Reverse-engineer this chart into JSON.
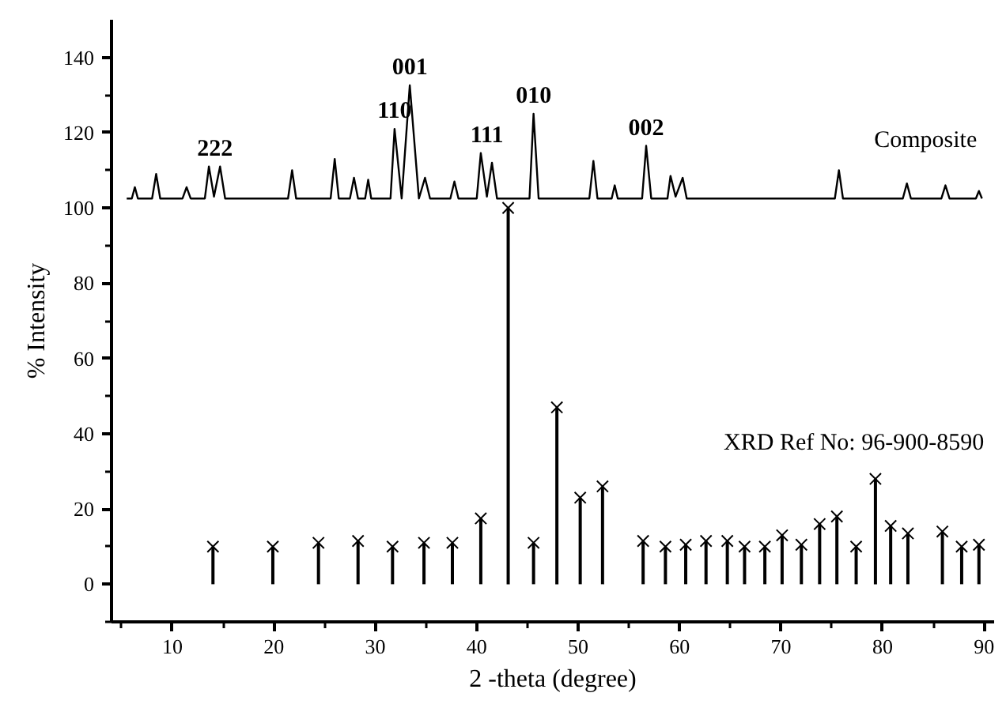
{
  "chart_data": {
    "type": "line",
    "xlabel": "2 -theta (degree)",
    "ylabel": "% Intensity",
    "xlim": [
      4,
      91
    ],
    "ylim": [
      -10,
      150
    ],
    "xticks": [
      {
        "value": 5,
        "label": null
      },
      10,
      {
        "value": 15,
        "label": null
      },
      20,
      {
        "value": 25,
        "label": null
      },
      30,
      {
        "value": 35,
        "label": null
      },
      40,
      {
        "value": 45,
        "label": null
      },
      50,
      {
        "value": 55,
        "label": null
      },
      60,
      {
        "value": 65,
        "label": null
      },
      70,
      {
        "value": 75,
        "label": null
      },
      80,
      {
        "value": 85,
        "label": null
      },
      90
    ],
    "yticks": [
      {
        "value": -10,
        "label": null
      },
      0,
      {
        "value": 10,
        "label": null
      },
      20,
      {
        "value": 30,
        "label": null
      },
      40,
      {
        "value": 50,
        "label": null
      },
      60,
      {
        "value": 70,
        "label": null
      },
      80,
      {
        "value": 90,
        "label": null
      },
      100,
      {
        "value": 110,
        "label": null
      },
      120,
      {
        "value": 130,
        "label": null
      },
      140
    ],
    "grid": false,
    "legend": false,
    "series": [
      {
        "name": "Composite",
        "color": "#000000",
        "marker": "none",
        "line_style": "solid",
        "x": [
          5.5,
          6.0,
          6.3,
          6.6,
          8.0,
          8.4,
          8.8,
          11.0,
          11.4,
          11.8,
          13.2,
          13.6,
          14.1,
          14.7,
          15.2,
          21.4,
          21.8,
          22.2,
          25.6,
          26.0,
          26.4,
          27.5,
          27.9,
          28.3,
          29.0,
          29.3,
          29.6,
          31.5,
          31.9,
          32.6,
          33.4,
          34.3,
          34.9,
          35.4,
          37.4,
          37.8,
          38.2,
          40.0,
          40.4,
          41.0,
          41.5,
          42.0,
          45.2,
          45.6,
          46.1,
          51.1,
          51.5,
          51.9,
          53.3,
          53.6,
          53.9,
          56.3,
          56.7,
          57.2,
          58.8,
          59.1,
          59.6,
          60.3,
          60.7,
          75.3,
          75.7,
          76.1,
          82.0,
          82.4,
          82.8,
          85.8,
          86.2,
          86.6,
          89.2,
          89.5,
          89.8
        ],
        "values": [
          102.5,
          102.5,
          105.5,
          102.5,
          102.5,
          109,
          102.5,
          102.5,
          105.5,
          102.5,
          102.5,
          111,
          103,
          111,
          102.5,
          102.5,
          110,
          102.5,
          102.5,
          113,
          102.5,
          102.5,
          108,
          102.5,
          102.5,
          107.5,
          102.5,
          102.5,
          121,
          102.5,
          132.6,
          102.5,
          108,
          102.5,
          102.5,
          107,
          102.5,
          102.5,
          114.6,
          103,
          112,
          102.5,
          102.5,
          125,
          102.5,
          102.5,
          112.5,
          102.5,
          102.5,
          106,
          102.5,
          102.5,
          116.5,
          102.5,
          102.5,
          108.5,
          103,
          108,
          102.5,
          102.5,
          110,
          102.5,
          102.5,
          106.5,
          102.5,
          102.5,
          106,
          102.5,
          102.5,
          104.5,
          102.5
        ]
      },
      {
        "name": "XRD Ref No: 96-900-8590",
        "type": "lollipop",
        "color": "#000000",
        "marker": "cross",
        "x": [
          14.0,
          19.9,
          24.4,
          28.3,
          31.7,
          34.8,
          37.6,
          40.4,
          43.1,
          45.6,
          47.9,
          50.2,
          52.4,
          56.4,
          58.6,
          60.6,
          62.6,
          64.7,
          66.4,
          68.4,
          70.1,
          72.0,
          73.8,
          75.5,
          77.4,
          79.3,
          80.8,
          82.5,
          85.9,
          87.8,
          89.5
        ],
        "values": [
          10,
          10,
          11,
          11.5,
          10,
          11,
          11,
          17.5,
          100,
          11,
          47,
          23,
          26,
          11.5,
          10,
          10.5,
          11.5,
          11.5,
          10,
          10,
          13,
          10.5,
          16,
          18,
          10,
          28,
          15.5,
          13.5,
          14,
          10,
          10.5
        ]
      }
    ],
    "annotations": [
      {
        "text": "222",
        "x": 14.2,
        "y": 111
      },
      {
        "text": "110",
        "x": 31.9,
        "y": 121
      },
      {
        "text": "001",
        "x": 33.4,
        "y": 132.6
      },
      {
        "text": "111",
        "x": 41.0,
        "y": 114.6
      },
      {
        "text": "010",
        "x": 45.6,
        "y": 125
      },
      {
        "text": "002",
        "x": 56.7,
        "y": 116.5
      }
    ]
  }
}
